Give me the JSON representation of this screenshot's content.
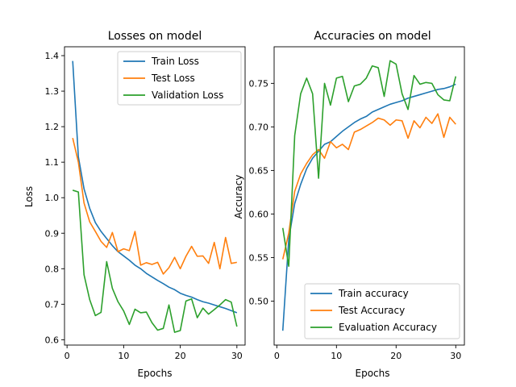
{
  "chart_data": [
    {
      "type": "line",
      "title": "Losses on model",
      "xlabel": "Epochs",
      "ylabel": "Loss",
      "xlim": [
        -0.45,
        31.45
      ],
      "ylim": [
        0.585,
        1.425
      ],
      "xticks": [
        0,
        10,
        20,
        30
      ],
      "yticks": [
        0.6,
        0.7,
        0.8,
        0.9,
        1.0,
        1.1,
        1.2,
        1.3,
        1.4
      ],
      "ytick_labels": [
        "0.6",
        "0.7",
        "0.8",
        "0.9",
        "1.0",
        "1.1",
        "1.2",
        "1.3",
        "1.4"
      ],
      "legend_position": "upper right",
      "x": [
        1,
        2,
        3,
        4,
        5,
        6,
        7,
        8,
        9,
        10,
        11,
        12,
        13,
        14,
        15,
        16,
        17,
        18,
        19,
        20,
        21,
        22,
        23,
        24,
        25,
        26,
        27,
        28,
        29,
        30
      ],
      "series": [
        {
          "name": "Train Loss",
          "color": "#1f77b4",
          "values": [
            1.385,
            1.115,
            1.025,
            0.97,
            0.93,
            0.905,
            0.885,
            0.865,
            0.848,
            0.836,
            0.824,
            0.81,
            0.8,
            0.787,
            0.777,
            0.767,
            0.758,
            0.748,
            0.741,
            0.731,
            0.725,
            0.72,
            0.713,
            0.707,
            0.703,
            0.698,
            0.693,
            0.688,
            0.682,
            0.676
          ]
        },
        {
          "name": "Test Loss",
          "color": "#ff7f0e",
          "values": [
            1.168,
            1.1,
            0.985,
            0.932,
            0.905,
            0.877,
            0.86,
            0.902,
            0.848,
            0.856,
            0.851,
            0.905,
            0.81,
            0.817,
            0.812,
            0.818,
            0.785,
            0.803,
            0.832,
            0.8,
            0.835,
            0.863,
            0.835,
            0.836,
            0.815,
            0.874,
            0.8,
            0.888,
            0.815,
            0.818
          ]
        },
        {
          "name": "Validation Loss",
          "color": "#2ca02c",
          "values": [
            1.021,
            1.016,
            0.783,
            0.713,
            0.668,
            0.677,
            0.82,
            0.745,
            0.707,
            0.681,
            0.643,
            0.686,
            0.676,
            0.678,
            0.648,
            0.627,
            0.632,
            0.698,
            0.621,
            0.626,
            0.709,
            0.715,
            0.662,
            0.689,
            0.672,
            0.685,
            0.698,
            0.713,
            0.706,
            0.637
          ]
        }
      ]
    },
    {
      "type": "line",
      "title": "Accuracies on model",
      "xlabel": "Epochs",
      "ylabel": "Accuracy",
      "xlim": [
        -0.45,
        31.45
      ],
      "ylim": [
        0.4495,
        0.792
      ],
      "xticks": [
        0,
        10,
        20,
        30
      ],
      "yticks": [
        0.5,
        0.55,
        0.6,
        0.65,
        0.7,
        0.75
      ],
      "ytick_labels": [
        "0.50",
        "0.55",
        "0.60",
        "0.65",
        "0.70",
        "0.75"
      ],
      "legend_position": "lower right",
      "x": [
        1,
        2,
        3,
        4,
        5,
        6,
        7,
        8,
        9,
        10,
        11,
        12,
        13,
        14,
        15,
        16,
        17,
        18,
        19,
        20,
        21,
        22,
        23,
        24,
        25,
        26,
        27,
        28,
        29,
        30
      ],
      "series": [
        {
          "name": "Train accuracy",
          "color": "#1f77b4",
          "values": [
            0.466,
            0.571,
            0.612,
            0.634,
            0.652,
            0.664,
            0.672,
            0.68,
            0.683,
            0.689,
            0.695,
            0.7,
            0.705,
            0.709,
            0.712,
            0.717,
            0.72,
            0.723,
            0.726,
            0.728,
            0.73,
            0.733,
            0.735,
            0.737,
            0.739,
            0.741,
            0.743,
            0.744,
            0.746,
            0.749
          ]
        },
        {
          "name": "Test Accuracy",
          "color": "#ff7f0e",
          "values": [
            0.548,
            0.578,
            0.626,
            0.646,
            0.658,
            0.668,
            0.674,
            0.664,
            0.683,
            0.676,
            0.68,
            0.674,
            0.694,
            0.697,
            0.701,
            0.705,
            0.71,
            0.708,
            0.702,
            0.708,
            0.707,
            0.687,
            0.707,
            0.699,
            0.711,
            0.704,
            0.715,
            0.688,
            0.711,
            0.703
          ]
        },
        {
          "name": "Evaluation Accuracy",
          "color": "#2ca02c",
          "values": [
            0.584,
            0.54,
            0.69,
            0.738,
            0.756,
            0.738,
            0.641,
            0.75,
            0.725,
            0.756,
            0.758,
            0.729,
            0.747,
            0.749,
            0.756,
            0.77,
            0.768,
            0.735,
            0.776,
            0.772,
            0.738,
            0.72,
            0.759,
            0.749,
            0.751,
            0.75,
            0.737,
            0.731,
            0.73,
            0.758
          ]
        }
      ]
    }
  ]
}
